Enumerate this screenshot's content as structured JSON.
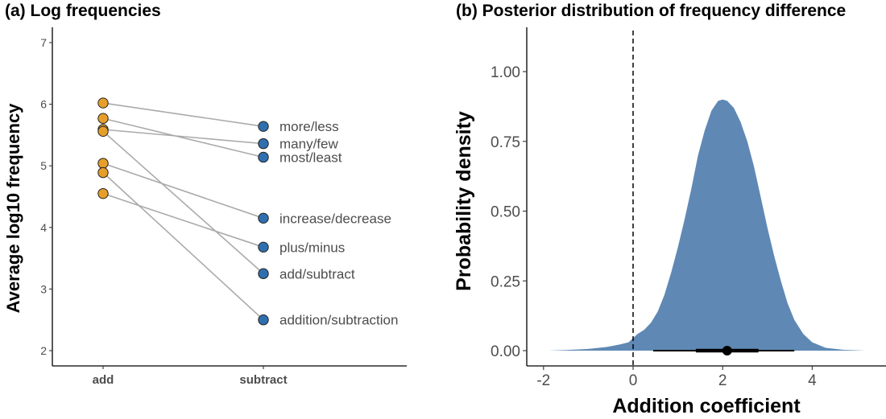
{
  "chart_data": [
    {
      "type": "line",
      "subtype": "slopegraph",
      "title": "(a) Log frequencies",
      "xlabel": "",
      "ylabel": "Average log10 frequency",
      "categories": [
        "add",
        "subtract"
      ],
      "ylim": [
        1.75,
        7.2
      ],
      "yticks": [
        2,
        3,
        4,
        5,
        6,
        7
      ],
      "grid": false,
      "colors": {
        "add": "#E69F2A",
        "subtract": "#2F6FAE",
        "line": "#AAAAAA"
      },
      "pairs": [
        {
          "label": "more/less",
          "add": 6.02,
          "subtract": 5.64
        },
        {
          "label": "many/few",
          "add": 5.59,
          "subtract": 5.36
        },
        {
          "label": "most/least",
          "add": 5.77,
          "subtract": 5.14
        },
        {
          "label": "increase/decrease",
          "add": 5.04,
          "subtract": 4.15
        },
        {
          "label": "plus/minus",
          "add": 4.55,
          "subtract": 3.68
        },
        {
          "label": "add/subtract",
          "add": 5.56,
          "subtract": 3.25
        },
        {
          "label": "addition/subtraction",
          "add": 4.89,
          "subtract": 2.5
        }
      ]
    },
    {
      "type": "area",
      "subtype": "density",
      "title": "(b) Posterior distribution of frequency difference",
      "xlabel": "Addition coefficient",
      "ylabel": "Probability density",
      "xlim": [
        -2.1,
        5.65
      ],
      "ylim": [
        -0.09,
        1.15
      ],
      "xticks": [
        -2,
        0,
        2,
        4
      ],
      "yticks": [
        0,
        0.25,
        0.5,
        0.75,
        1.0
      ],
      "ytick_labels": [
        "0.00",
        "0.25",
        "0.50",
        "0.75",
        "1.00"
      ],
      "grid": false,
      "reference_line": {
        "x": 0,
        "style": "dashed"
      },
      "fill_color": "#5F89B4",
      "density": {
        "x": [
          -1.9,
          -1.5,
          -1.0,
          -0.6,
          -0.3,
          -0.1,
          0.0,
          0.1,
          0.25,
          0.4,
          0.55,
          0.7,
          0.85,
          1.0,
          1.15,
          1.3,
          1.45,
          1.6,
          1.75,
          1.9,
          2.0,
          2.1,
          2.25,
          2.4,
          2.55,
          2.7,
          2.85,
          3.0,
          3.15,
          3.3,
          3.45,
          3.6,
          3.8,
          4.0,
          4.3,
          4.7,
          5.2
        ],
        "y": [
          0.0,
          0.002,
          0.006,
          0.013,
          0.022,
          0.03,
          0.045,
          0.06,
          0.075,
          0.1,
          0.14,
          0.2,
          0.28,
          0.37,
          0.47,
          0.58,
          0.7,
          0.79,
          0.86,
          0.895,
          0.9,
          0.895,
          0.87,
          0.82,
          0.75,
          0.66,
          0.55,
          0.44,
          0.34,
          0.25,
          0.17,
          0.11,
          0.06,
          0.03,
          0.01,
          0.003,
          0.0
        ]
      },
      "point_estimate": 2.1,
      "interval_inner": [
        1.4,
        2.8
      ],
      "interval_outer": [
        0.45,
        3.6
      ]
    }
  ]
}
